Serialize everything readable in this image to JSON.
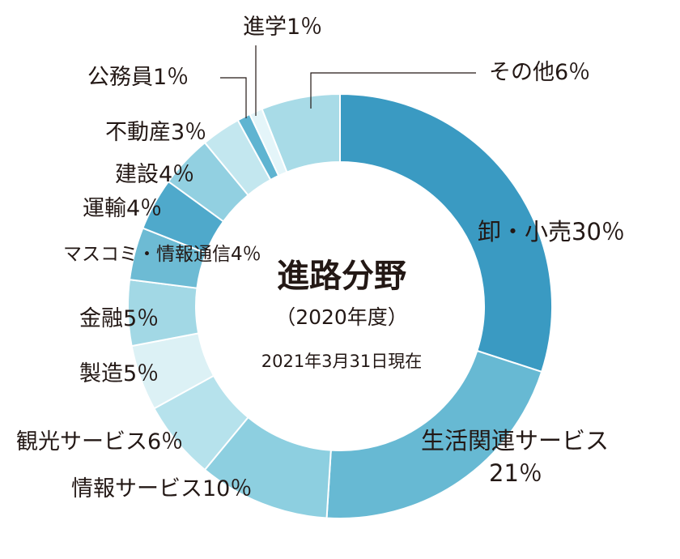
{
  "chart_data": {
    "type": "pie",
    "title": "進路分野",
    "subtitle": "（2020年度）",
    "note": "2021年3月31日現在",
    "slices": [
      {
        "label": "卸・小売",
        "value": 30,
        "value_label": "30％",
        "color": "#3a9ac2"
      },
      {
        "label": "生活関連サービス",
        "value": 21,
        "value_label": "21％",
        "color": "#67b9d3"
      },
      {
        "label": "情報サービス",
        "value": 10,
        "value_label": "10％",
        "color": "#8dcfe0"
      },
      {
        "label": "観光サービス",
        "value": 6,
        "value_label": "6％",
        "color": "#b6e2ec"
      },
      {
        "label": "製造",
        "value": 5,
        "value_label": "5％",
        "color": "#dcf1f5"
      },
      {
        "label": "金融",
        "value": 5,
        "value_label": "5％",
        "color": "#a2d8e5"
      },
      {
        "label": "マスコミ・情報通信",
        "value": 4,
        "value_label": "4％",
        "color": "#6dbbd4"
      },
      {
        "label": "運輸",
        "value": 4,
        "value_label": "4％",
        "color": "#4fa9cb"
      },
      {
        "label": "建設",
        "value": 4,
        "value_label": "4％",
        "color": "#92d0e1"
      },
      {
        "label": "不動産",
        "value": 3,
        "value_label": "3％",
        "color": "#c3e7ef"
      },
      {
        "label": "公務員",
        "value": 1,
        "value_label": "1％",
        "color": "#5fb4d1"
      },
      {
        "label": "進学",
        "value": 1,
        "value_label": "1％",
        "color": "#e4f5f9"
      },
      {
        "label": "その他",
        "value": 6,
        "value_label": "6％",
        "color": "#a8dbe7"
      }
    ]
  }
}
